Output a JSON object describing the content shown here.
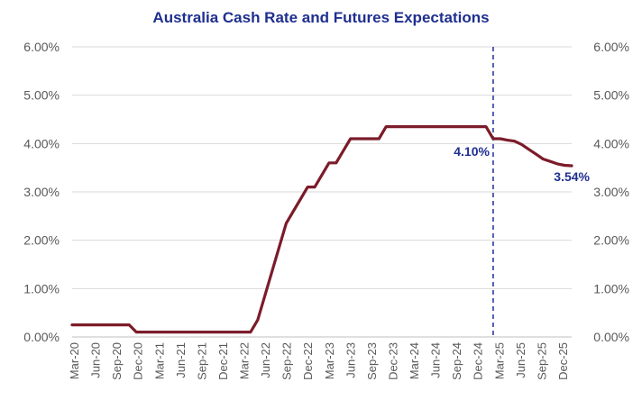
{
  "colors": {
    "title": "#1f2f8f",
    "series": "#7b1c2a",
    "divider": "#2b3aa0",
    "annotation": "#1f2f8f",
    "grid": "#d9d9d9",
    "axis": "#bfbfbf"
  },
  "chart_data": {
    "type": "line",
    "title": "Australia Cash Rate and Futures Expectations",
    "xlabel": "",
    "ylabel": "",
    "ylim": [
      0,
      6
    ],
    "y_ticks": [
      "0.00%",
      "1.00%",
      "2.00%",
      "3.00%",
      "4.00%",
      "5.00%",
      "6.00%"
    ],
    "secondary_y_ticks": [
      "0.00%",
      "1.00%",
      "2.00%",
      "3.00%",
      "4.00%",
      "5.00%",
      "6.00%"
    ],
    "x_tick_labels": [
      "Mar-20",
      "Jun-20",
      "Sep-20",
      "Dec-20",
      "Mar-21",
      "Jun-21",
      "Sep-21",
      "Dec-21",
      "Mar-22",
      "Jun-22",
      "Sep-22",
      "Dec-22",
      "Mar-23",
      "Jun-23",
      "Sep-23",
      "Dec-23",
      "Mar-24",
      "Jun-24",
      "Sep-24",
      "Dec-24",
      "Mar-25",
      "Jun-25",
      "Sep-25",
      "Dec-25"
    ],
    "grid": true,
    "legend": "none",
    "series": [
      {
        "x": [
          "2020-03",
          "2020-04",
          "2020-05",
          "2020-06",
          "2020-07",
          "2020-08",
          "2020-09",
          "2020-10",
          "2020-11",
          "2020-12",
          "2021-01",
          "2021-02",
          "2021-03",
          "2021-04",
          "2021-05",
          "2021-06",
          "2021-07",
          "2021-08",
          "2021-09",
          "2021-10",
          "2021-11",
          "2021-12",
          "2022-01",
          "2022-02",
          "2022-03",
          "2022-04",
          "2022-05",
          "2022-06",
          "2022-07",
          "2022-08",
          "2022-09",
          "2022-10",
          "2022-11",
          "2022-12",
          "2023-01",
          "2023-02",
          "2023-03",
          "2023-04",
          "2023-05",
          "2023-06",
          "2023-07",
          "2023-08",
          "2023-09",
          "2023-10",
          "2023-11",
          "2023-12",
          "2024-01",
          "2024-02",
          "2024-03",
          "2024-04",
          "2024-05",
          "2024-06",
          "2024-07",
          "2024-08",
          "2024-09",
          "2024-10",
          "2024-11",
          "2024-12",
          "2025-01",
          "2025-02",
          "2025-03",
          "2025-04",
          "2025-05",
          "2025-06",
          "2025-07",
          "2025-08",
          "2025-09",
          "2025-10",
          "2025-11",
          "2025-12",
          "2026-01"
        ],
        "values": [
          0.25,
          0.25,
          0.25,
          0.25,
          0.25,
          0.25,
          0.25,
          0.25,
          0.25,
          0.1,
          0.1,
          0.1,
          0.1,
          0.1,
          0.1,
          0.1,
          0.1,
          0.1,
          0.1,
          0.1,
          0.1,
          0.1,
          0.1,
          0.1,
          0.1,
          0.1,
          0.35,
          0.85,
          1.35,
          1.85,
          2.35,
          2.6,
          2.85,
          3.1,
          3.1,
          3.35,
          3.6,
          3.6,
          3.85,
          4.1,
          4.1,
          4.1,
          4.1,
          4.1,
          4.35,
          4.35,
          4.35,
          4.35,
          4.35,
          4.35,
          4.35,
          4.35,
          4.35,
          4.35,
          4.35,
          4.35,
          4.35,
          4.35,
          4.35,
          4.1,
          4.1,
          4.07,
          4.05,
          3.98,
          3.88,
          3.78,
          3.68,
          3.63,
          3.58,
          3.55,
          3.54
        ]
      }
    ],
    "vertical_marker": {
      "x": "2025-02"
    },
    "annotations": [
      {
        "text": "4.10%",
        "x": "2025-02",
        "y": 4.1
      },
      {
        "text": "3.54%",
        "x": "2026-01",
        "y": 3.54
      }
    ]
  }
}
